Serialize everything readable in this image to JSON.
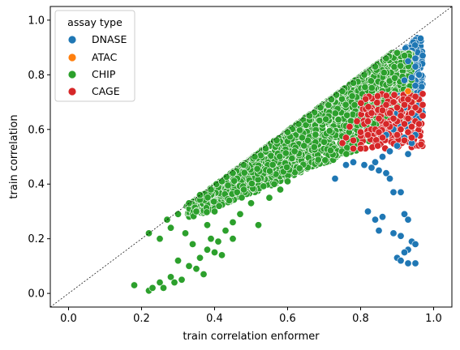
{
  "chart_data": {
    "type": "scatter",
    "title": "",
    "xlabel": "train correlation enformer",
    "ylabel": "train correlation",
    "xlim": [
      -0.05,
      1.05
    ],
    "ylim": [
      -0.05,
      1.05
    ],
    "xticks": [
      0.0,
      0.2,
      0.4,
      0.6,
      0.8,
      1.0
    ],
    "yticks": [
      0.0,
      0.2,
      0.4,
      0.6,
      0.8,
      1.0
    ],
    "xtick_labels": [
      "0.0",
      "0.2",
      "0.4",
      "0.6",
      "0.8",
      "1.0"
    ],
    "ytick_labels": [
      "0.0",
      "0.2",
      "0.4",
      "0.6",
      "0.8",
      "1.0"
    ],
    "grid": false,
    "diagonal_reference_line": true,
    "legend": {
      "title": "assay type",
      "placement": "top-left"
    },
    "series": [
      {
        "name": "DNASE",
        "color": "#1f77b4",
        "points": [
          [
            0.97,
            0.87
          ],
          [
            0.95,
            0.86
          ],
          [
            0.93,
            0.85
          ],
          [
            0.95,
            0.83
          ],
          [
            0.96,
            0.8
          ],
          [
            0.94,
            0.79
          ],
          [
            0.92,
            0.78
          ],
          [
            0.95,
            0.76
          ],
          [
            0.93,
            0.74
          ],
          [
            0.96,
            0.72
          ],
          [
            0.94,
            0.7
          ],
          [
            0.92,
            0.68
          ],
          [
            0.9,
            0.66
          ],
          [
            0.95,
            0.65
          ],
          [
            0.93,
            0.63
          ],
          [
            0.91,
            0.61
          ],
          [
            0.89,
            0.6
          ],
          [
            0.87,
            0.58
          ],
          [
            0.92,
            0.57
          ],
          [
            0.94,
            0.55
          ],
          [
            0.9,
            0.54
          ],
          [
            0.88,
            0.52
          ],
          [
            0.93,
            0.51
          ],
          [
            0.86,
            0.5
          ],
          [
            0.84,
            0.48
          ],
          [
            0.78,
            0.48
          ],
          [
            0.81,
            0.47
          ],
          [
            0.83,
            0.46
          ],
          [
            0.85,
            0.45
          ],
          [
            0.87,
            0.44
          ],
          [
            0.73,
            0.42
          ],
          [
            0.76,
            0.47
          ],
          [
            0.88,
            0.42
          ],
          [
            0.89,
            0.37
          ],
          [
            0.91,
            0.37
          ],
          [
            0.82,
            0.3
          ],
          [
            0.84,
            0.27
          ],
          [
            0.86,
            0.28
          ],
          [
            0.85,
            0.23
          ],
          [
            0.89,
            0.22
          ],
          [
            0.92,
            0.29
          ],
          [
            0.93,
            0.27
          ],
          [
            0.91,
            0.21
          ],
          [
            0.94,
            0.19
          ],
          [
            0.95,
            0.18
          ],
          [
            0.93,
            0.16
          ],
          [
            0.92,
            0.15
          ],
          [
            0.9,
            0.13
          ],
          [
            0.91,
            0.12
          ],
          [
            0.93,
            0.11
          ],
          [
            0.95,
            0.11
          ],
          [
            0.96,
            0.69
          ],
          [
            0.97,
            0.66
          ],
          [
            0.94,
            0.61
          ],
          [
            0.95,
            0.58
          ],
          [
            0.93,
            0.6
          ],
          [
            0.96,
            0.64
          ]
        ]
      },
      {
        "name": "ATAC",
        "color": "#ff7f0e",
        "points": [
          [
            0.93,
            0.74
          ],
          [
            0.95,
            0.71
          ]
        ]
      },
      {
        "name": "CHIP",
        "color": "#2ca02c",
        "points": [
          [
            0.18,
            0.03
          ],
          [
            0.22,
            0.01
          ],
          [
            0.23,
            0.02
          ],
          [
            0.25,
            0.04
          ],
          [
            0.26,
            0.02
          ],
          [
            0.28,
            0.06
          ],
          [
            0.31,
            0.05
          ],
          [
            0.29,
            0.04
          ],
          [
            0.3,
            0.12
          ],
          [
            0.33,
            0.1
          ],
          [
            0.35,
            0.09
          ],
          [
            0.36,
            0.13
          ],
          [
            0.38,
            0.16
          ],
          [
            0.39,
            0.2
          ],
          [
            0.4,
            0.15
          ],
          [
            0.41,
            0.19
          ],
          [
            0.43,
            0.23
          ],
          [
            0.45,
            0.26
          ],
          [
            0.42,
            0.14
          ],
          [
            0.37,
            0.07
          ],
          [
            0.32,
            0.22
          ],
          [
            0.34,
            0.18
          ],
          [
            0.25,
            0.2
          ],
          [
            0.27,
            0.27
          ],
          [
            0.3,
            0.29
          ],
          [
            0.28,
            0.24
          ],
          [
            0.45,
            0.2
          ],
          [
            0.47,
            0.29
          ],
          [
            0.5,
            0.33
          ],
          [
            0.52,
            0.25
          ],
          [
            0.55,
            0.35
          ],
          [
            0.58,
            0.38
          ],
          [
            0.6,
            0.41
          ],
          [
            0.48,
            0.38
          ],
          [
            0.44,
            0.34
          ],
          [
            0.4,
            0.3
          ],
          [
            0.38,
            0.25
          ],
          [
            0.22,
            0.22
          ],
          [
            0.35,
            0.3
          ],
          [
            0.33,
            0.33
          ],
          [
            0.36,
            0.36
          ],
          [
            0.39,
            0.38
          ],
          [
            0.42,
            0.41
          ],
          [
            0.45,
            0.44
          ],
          [
            0.48,
            0.47
          ],
          [
            0.51,
            0.5
          ],
          [
            0.54,
            0.53
          ],
          [
            0.57,
            0.56
          ],
          [
            0.6,
            0.59
          ],
          [
            0.63,
            0.62
          ],
          [
            0.66,
            0.65
          ],
          [
            0.69,
            0.68
          ],
          [
            0.72,
            0.71
          ],
          [
            0.75,
            0.74
          ],
          [
            0.78,
            0.77
          ],
          [
            0.81,
            0.8
          ],
          [
            0.84,
            0.83
          ],
          [
            0.87,
            0.86
          ],
          [
            0.9,
            0.88
          ],
          [
            0.92,
            0.87
          ]
        ]
      },
      {
        "name": "CAGE",
        "color": "#d62728",
        "points": [
          [
            0.97,
            0.73
          ],
          [
            0.96,
            0.71
          ],
          [
            0.95,
            0.72
          ],
          [
            0.94,
            0.7
          ],
          [
            0.93,
            0.71
          ],
          [
            0.97,
            0.69
          ],
          [
            0.96,
            0.67
          ],
          [
            0.95,
            0.68
          ],
          [
            0.94,
            0.66
          ],
          [
            0.92,
            0.69
          ],
          [
            0.91,
            0.67
          ],
          [
            0.9,
            0.68
          ],
          [
            0.89,
            0.7
          ],
          [
            0.88,
            0.66
          ],
          [
            0.87,
            0.69
          ],
          [
            0.86,
            0.67
          ],
          [
            0.93,
            0.64
          ],
          [
            0.95,
            0.63
          ],
          [
            0.92,
            0.62
          ],
          [
            0.9,
            0.63
          ],
          [
            0.88,
            0.61
          ],
          [
            0.91,
            0.6
          ],
          [
            0.93,
            0.59
          ],
          [
            0.87,
            0.62
          ],
          [
            0.85,
            0.64
          ],
          [
            0.83,
            0.66
          ],
          [
            0.81,
            0.62
          ],
          [
            0.79,
            0.63
          ],
          [
            0.77,
            0.61
          ],
          [
            0.94,
            0.57
          ],
          [
            0.92,
            0.56
          ],
          [
            0.9,
            0.58
          ],
          [
            0.86,
            0.57
          ],
          [
            0.84,
            0.6
          ],
          [
            0.82,
            0.58
          ],
          [
            0.8,
            0.59
          ],
          [
            0.78,
            0.56
          ],
          [
            0.76,
            0.57
          ],
          [
            0.8,
            0.53
          ],
          [
            0.78,
            0.53
          ],
          [
            0.75,
            0.55
          ],
          [
            0.97,
            0.65
          ],
          [
            0.96,
            0.62
          ],
          [
            0.89,
            0.64
          ],
          [
            0.85,
            0.59
          ],
          [
            0.82,
            0.63
          ],
          [
            0.94,
            0.61
          ],
          [
            0.91,
            0.65
          ]
        ]
      }
    ]
  }
}
